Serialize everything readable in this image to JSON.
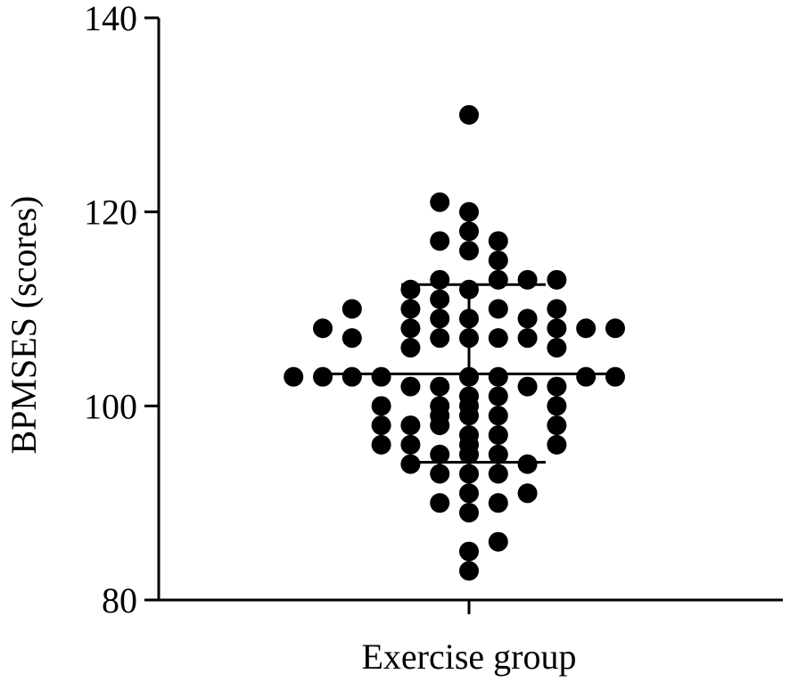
{
  "chart_data": {
    "type": "scatter",
    "chart_style": "dot-plot with mean and SD bars",
    "xlabel": "Exercise group",
    "ylabel": "BPMSES (scores)",
    "ylim": [
      80,
      140
    ],
    "yticks": [
      80,
      100,
      120,
      140
    ],
    "categories": [
      "Exercise group"
    ],
    "grid": false,
    "legend": "none",
    "summary": {
      "mean": 103.3,
      "sd_upper": 112.5,
      "sd_lower": 94.2
    },
    "dots": [
      {
        "col": 0,
        "y": 130
      },
      {
        "col": -1,
        "y": 121
      },
      {
        "col": 0,
        "y": 120
      },
      {
        "col": 0,
        "y": 118
      },
      {
        "col": -1,
        "y": 117
      },
      {
        "col": 1,
        "y": 117
      },
      {
        "col": 0,
        "y": 116
      },
      {
        "col": 1,
        "y": 115
      },
      {
        "col": -1,
        "y": 113
      },
      {
        "col": 1,
        "y": 113
      },
      {
        "col": 2,
        "y": 113
      },
      {
        "col": 3,
        "y": 113
      },
      {
        "col": -2,
        "y": 112
      },
      {
        "col": 0,
        "y": 112
      },
      {
        "col": -1,
        "y": 111
      },
      {
        "col": -4,
        "y": 110
      },
      {
        "col": -2,
        "y": 110
      },
      {
        "col": 1,
        "y": 110
      },
      {
        "col": 3,
        "y": 110
      },
      {
        "col": -1,
        "y": 109
      },
      {
        "col": 0,
        "y": 109
      },
      {
        "col": 2,
        "y": 109
      },
      {
        "col": -5,
        "y": 108
      },
      {
        "col": -2,
        "y": 108
      },
      {
        "col": 3,
        "y": 108
      },
      {
        "col": 4,
        "y": 108
      },
      {
        "col": 5,
        "y": 108
      },
      {
        "col": -4,
        "y": 107
      },
      {
        "col": -1,
        "y": 107
      },
      {
        "col": 0,
        "y": 107
      },
      {
        "col": 1,
        "y": 107
      },
      {
        "col": 2,
        "y": 107
      },
      {
        "col": -2,
        "y": 106
      },
      {
        "col": 3,
        "y": 106
      },
      {
        "col": -6,
        "y": 103
      },
      {
        "col": -5,
        "y": 103
      },
      {
        "col": -4,
        "y": 103
      },
      {
        "col": -3,
        "y": 103
      },
      {
        "col": 0,
        "y": 103
      },
      {
        "col": 1,
        "y": 103
      },
      {
        "col": 4,
        "y": 103
      },
      {
        "col": 5,
        "y": 103
      },
      {
        "col": -2,
        "y": 102
      },
      {
        "col": -1,
        "y": 102
      },
      {
        "col": 2,
        "y": 102
      },
      {
        "col": 3,
        "y": 102
      },
      {
        "col": 0,
        "y": 101
      },
      {
        "col": 1,
        "y": 101
      },
      {
        "col": -3,
        "y": 100
      },
      {
        "col": -1,
        "y": 100
      },
      {
        "col": 0,
        "y": 100
      },
      {
        "col": 3,
        "y": 100
      },
      {
        "col": -1,
        "y": 99
      },
      {
        "col": 0,
        "y": 99
      },
      {
        "col": 1,
        "y": 99
      },
      {
        "col": -3,
        "y": 98
      },
      {
        "col": -2,
        "y": 98
      },
      {
        "col": -1,
        "y": 98
      },
      {
        "col": 3,
        "y": 98
      },
      {
        "col": 0,
        "y": 97
      },
      {
        "col": 1,
        "y": 97
      },
      {
        "col": -3,
        "y": 96
      },
      {
        "col": -2,
        "y": 96
      },
      {
        "col": 0,
        "y": 96
      },
      {
        "col": 3,
        "y": 96
      },
      {
        "col": -1,
        "y": 95
      },
      {
        "col": 0,
        "y": 95
      },
      {
        "col": 1,
        "y": 95
      },
      {
        "col": -2,
        "y": 94
      },
      {
        "col": 2,
        "y": 94
      },
      {
        "col": -1,
        "y": 93
      },
      {
        "col": 0,
        "y": 93
      },
      {
        "col": 1,
        "y": 93
      },
      {
        "col": 0,
        "y": 91
      },
      {
        "col": 2,
        "y": 91
      },
      {
        "col": -1,
        "y": 90
      },
      {
        "col": 1,
        "y": 90
      },
      {
        "col": 0,
        "y": 89
      },
      {
        "col": 1,
        "y": 86
      },
      {
        "col": 0,
        "y": 85
      },
      {
        "col": 0,
        "y": 83
      }
    ]
  }
}
